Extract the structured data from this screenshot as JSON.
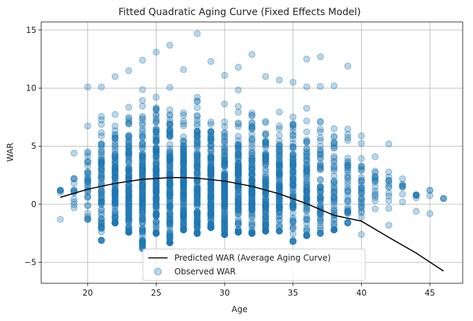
{
  "chart_data": {
    "type": "scatter",
    "title": "Fitted Quadratic Aging Curve (Fixed Effects Model)",
    "xlabel": "Age",
    "ylabel": "WAR",
    "xlim": [
      16.6,
      47.4
    ],
    "ylim": [
      -6.8,
      15.7
    ],
    "xticks": [
      20,
      25,
      30,
      35,
      40,
      45
    ],
    "yticks": [
      -5,
      0,
      5,
      10,
      15
    ],
    "grid": true,
    "legend_position": "bottom-center",
    "colors": {
      "scatter": "#1f77b4",
      "line": "#000000",
      "grid": "#b0b0b0"
    },
    "series": [
      {
        "name": "Predicted WAR (Average Aging Curve)",
        "type": "line",
        "x": [
          18,
          20,
          22,
          24,
          26,
          27,
          28,
          30,
          32,
          34,
          36,
          38,
          40,
          42,
          44,
          46
        ],
        "y": [
          0.6,
          1.3,
          1.8,
          2.15,
          2.3,
          2.3,
          2.25,
          2.0,
          1.55,
          0.9,
          0.05,
          -0.95,
          -1.45,
          -2.85,
          -4.2,
          -5.75
        ]
      },
      {
        "name": "Observed WAR",
        "type": "scatter",
        "ranges": [
          {
            "age": 18,
            "min": -1.3,
            "max": 1.2,
            "n": 5
          },
          {
            "age": 19,
            "min": -0.3,
            "max": 4.4,
            "n": 12
          },
          {
            "age": 20,
            "min": -1.3,
            "max": 10.1,
            "n": 35
          },
          {
            "age": 21,
            "min": -3.1,
            "max": 10.1,
            "n": 80
          },
          {
            "age": 22,
            "min": -1.6,
            "max": 11.0,
            "n": 110
          },
          {
            "age": 23,
            "min": -2.4,
            "max": 11.5,
            "n": 130
          },
          {
            "age": 24,
            "min": -3.8,
            "max": 12.4,
            "n": 140
          },
          {
            "age": 25,
            "min": -2.5,
            "max": 13.1,
            "n": 150
          },
          {
            "age": 26,
            "min": -3.3,
            "max": 13.7,
            "n": 150
          },
          {
            "age": 27,
            "min": -2.2,
            "max": 11.6,
            "n": 150
          },
          {
            "age": 28,
            "min": -2.5,
            "max": 14.7,
            "n": 150
          },
          {
            "age": 29,
            "min": -2.0,
            "max": 12.3,
            "n": 145
          },
          {
            "age": 30,
            "min": -2.6,
            "max": 11.1,
            "n": 140
          },
          {
            "age": 31,
            "min": -2.4,
            "max": 11.8,
            "n": 130
          },
          {
            "age": 32,
            "min": -2.5,
            "max": 12.9,
            "n": 125
          },
          {
            "age": 33,
            "min": -2.3,
            "max": 11.0,
            "n": 115
          },
          {
            "age": 34,
            "min": -2.3,
            "max": 10.7,
            "n": 100
          },
          {
            "age": 35,
            "min": -3.2,
            "max": 10.5,
            "n": 90
          },
          {
            "age": 36,
            "min": -2.7,
            "max": 12.5,
            "n": 80
          },
          {
            "age": 37,
            "min": -2.5,
            "max": 12.7,
            "n": 65
          },
          {
            "age": 38,
            "min": -2.2,
            "max": 10.2,
            "n": 55
          },
          {
            "age": 39,
            "min": -1.6,
            "max": 11.9,
            "n": 40
          },
          {
            "age": 40,
            "min": -2.6,
            "max": 5.9,
            "n": 30
          },
          {
            "age": 41,
            "min": -0.4,
            "max": 4.1,
            "n": 15
          },
          {
            "age": 42,
            "min": -1.8,
            "max": 5.2,
            "n": 12
          },
          {
            "age": 43,
            "min": 0.2,
            "max": 2.2,
            "n": 6
          },
          {
            "age": 44,
            "min": -0.6,
            "max": 0.8,
            "n": 6
          },
          {
            "age": 45,
            "min": -0.8,
            "max": 1.2,
            "n": 2
          },
          {
            "age": 46,
            "min": 0.5,
            "max": 0.5,
            "n": 1
          }
        ]
      }
    ]
  }
}
